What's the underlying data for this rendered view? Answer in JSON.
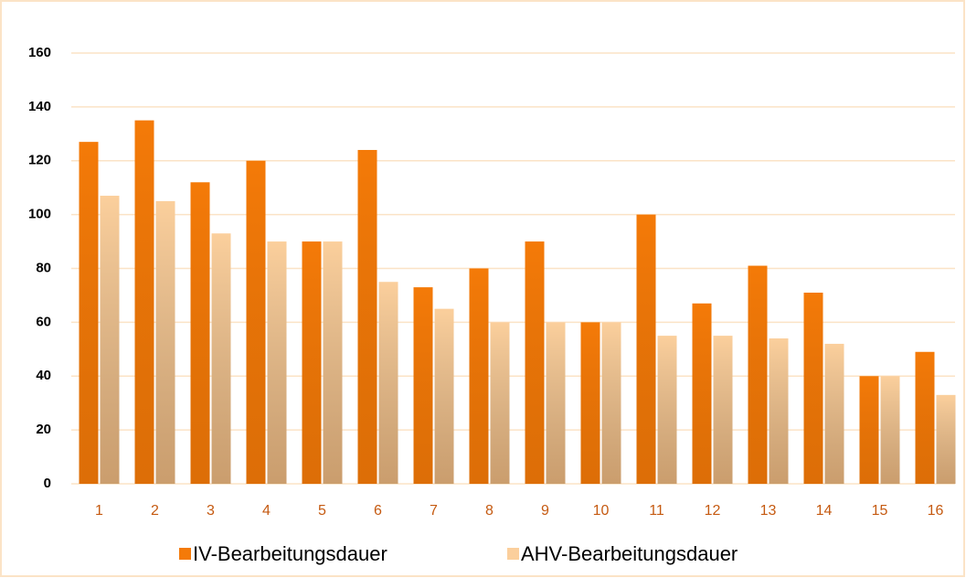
{
  "chart_data": {
    "type": "bar",
    "categories": [
      "1",
      "2",
      "3",
      "4",
      "5",
      "6",
      "7",
      "8",
      "9",
      "10",
      "11",
      "12",
      "13",
      "14",
      "15",
      "16"
    ],
    "series": [
      {
        "name": "IV-Bearbeitungsdauer",
        "color": "#f47a08",
        "values": [
          127,
          135,
          112,
          120,
          90,
          124,
          73,
          80,
          90,
          60,
          100,
          67,
          81,
          71,
          40,
          49
        ]
      },
      {
        "name": "AHV-Bearbeitungsdauer",
        "color": "#fbcf9c",
        "values": [
          107,
          105,
          93,
          90,
          90,
          75,
          65,
          60,
          60,
          60,
          55,
          55,
          54,
          52,
          40,
          33
        ]
      }
    ],
    "ylim": [
      0,
      160
    ],
    "yticks": [
      0,
      20,
      40,
      60,
      80,
      100,
      120,
      140,
      160
    ],
    "grid": true,
    "legend": "bottom"
  }
}
